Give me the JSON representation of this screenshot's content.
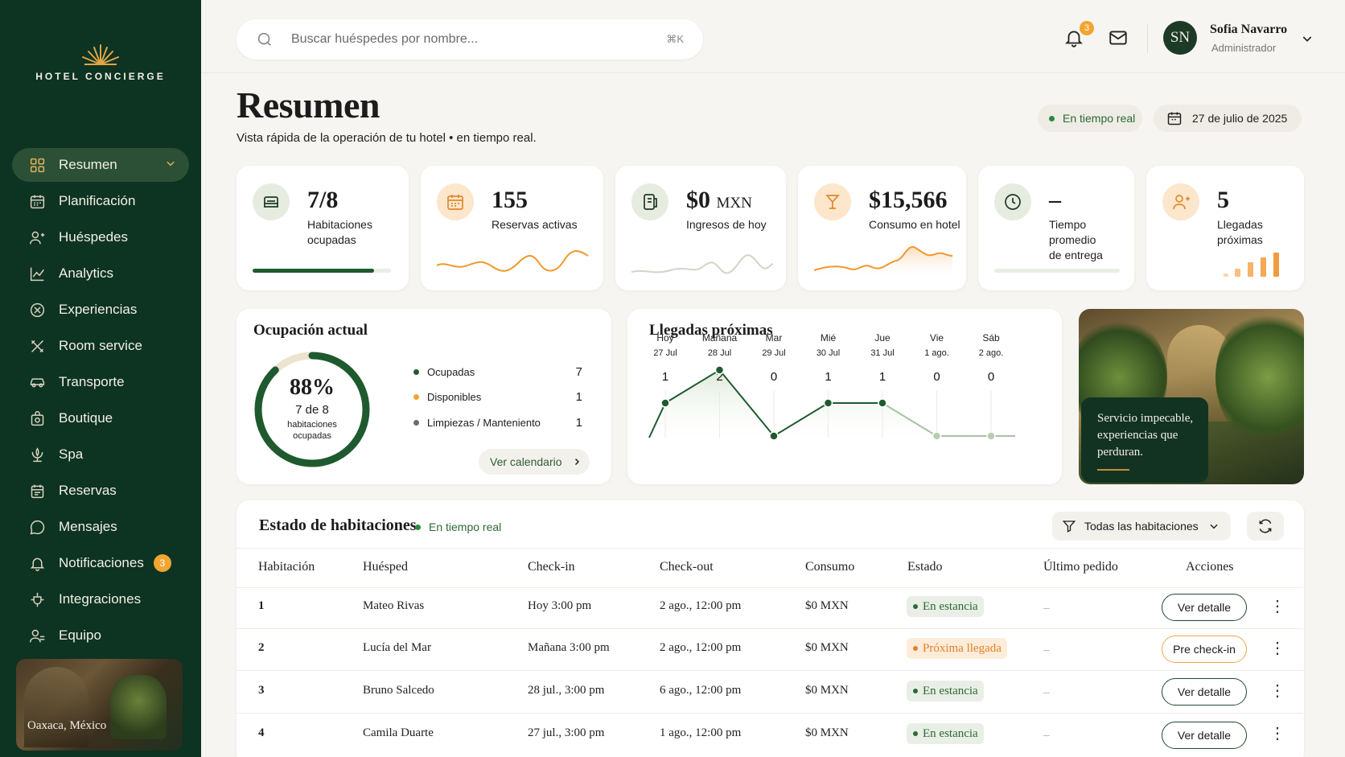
{
  "brand": {
    "name": "HOTEL CONCIERGE"
  },
  "sidebar": {
    "items": [
      {
        "label": "Resumen",
        "icon": "grid-icon",
        "active": true
      },
      {
        "label": "Planificación",
        "icon": "calendar-icon"
      },
      {
        "label": "Huéspedes",
        "icon": "users-icon"
      },
      {
        "label": "Analytics",
        "icon": "chart-line-icon"
      },
      {
        "label": "Experiencias",
        "icon": "compass-icon"
      },
      {
        "label": "Room service",
        "icon": "utensils-icon"
      },
      {
        "label": "Transporte",
        "icon": "car-icon"
      },
      {
        "label": "Boutique",
        "icon": "bag-icon"
      },
      {
        "label": "Spa",
        "icon": "lotus-icon"
      },
      {
        "label": "Reservas",
        "icon": "clipboard-icon"
      },
      {
        "label": "Mensajes",
        "icon": "chat-icon"
      },
      {
        "label": "Notificaciones",
        "icon": "bell-icon",
        "badge": "3"
      },
      {
        "label": "Integraciones",
        "icon": "plug-icon"
      },
      {
        "label": "Equipo",
        "icon": "team-icon"
      }
    ],
    "location": "Oaxaca, México"
  },
  "topbar": {
    "search_placeholder": "Buscar huéspedes por nombre...",
    "search_shortcut": "⌘K",
    "notif_count": "3",
    "user": {
      "initials": "SN",
      "name": "Sofia Navarro",
      "role": "Administrador"
    }
  },
  "header": {
    "title": "Resumen",
    "subtitle": "Vista rápida de la operación de tu hotel • en tiempo real.",
    "live_label": "En tiempo real",
    "date": "27 de julio de 2025"
  },
  "kpis": [
    {
      "value": "7/8",
      "unit": "",
      "label_line1": "Habitaciones",
      "label_line2": "ocupadas",
      "icon": "bed-icon",
      "progress": 0.875
    },
    {
      "value": "155",
      "unit": "",
      "label_line1": "Reservas activas",
      "label_line2": "",
      "icon": "calendar-icon"
    },
    {
      "value": "$0",
      "unit": "MXN",
      "label_line1": "Ingresos de hoy",
      "label_line2": "",
      "icon": "wallet-icon"
    },
    {
      "value": "$15,566",
      "unit": "",
      "label_line1": "Consumo en hotel",
      "label_line2": "",
      "icon": "cocktail-icon"
    },
    {
      "value": "–",
      "unit": "",
      "label_line1": "Tiempo promedio",
      "label_line2": "de entrega",
      "icon": "clock-icon",
      "progress": 0
    },
    {
      "value": "5",
      "unit": "",
      "label_line1": "Llegadas",
      "label_line2": "próximas",
      "icon": "user-plus-icon"
    }
  ],
  "occupancy": {
    "title": "Ocupación actual",
    "percent_label": "88%",
    "percent": 0.88,
    "detail": "7 de 8",
    "caption_line1": "habitaciones",
    "caption_line2": "ocupadas",
    "legend": [
      {
        "label": "Ocupadas",
        "value": "7",
        "color": "#1f5a2f"
      },
      {
        "label": "Disponibles",
        "value": "1",
        "color": "#f2a531"
      },
      {
        "label": "Limpiezas / Manteniento",
        "value": "1",
        "color": "#6b6b6b"
      }
    ],
    "button": "Ver calendario"
  },
  "arrivals": {
    "title": "Llegadas próximas",
    "days": [
      {
        "day": "Hoy",
        "date": "27 Jul",
        "count": 1
      },
      {
        "day": "Mañana",
        "date": "28 Jul",
        "count": 2
      },
      {
        "day": "Mar",
        "date": "29 Jul",
        "count": 0
      },
      {
        "day": "Mié",
        "date": "30 Jul",
        "count": 1
      },
      {
        "day": "Jue",
        "date": "31 Jul",
        "count": 1
      },
      {
        "day": "Vie",
        "date": "1 ago.",
        "count": 0
      },
      {
        "day": "Sáb",
        "date": "2 ago.",
        "count": 0
      }
    ]
  },
  "hero": {
    "caption_line1": "Servicio impecable,",
    "caption_line2": "experiencias que",
    "caption_line3": "perduran."
  },
  "rooms": {
    "title": "Estado de habitaciones",
    "live_label": "En tiempo real",
    "filter_label": "Todas las habitaciones",
    "columns": [
      "Habitación",
      "Huésped",
      "Check-in",
      "Check-out",
      "Consumo",
      "Estado",
      "Último pedido",
      "Acciones"
    ],
    "rows": [
      {
        "room": "1",
        "guest": "Mateo Rivas",
        "checkin": "Hoy 3:00 pm",
        "checkout": "2 ago., 12:00 pm",
        "consumption": "$0 MXN",
        "status": "En estancia",
        "last_order": "–",
        "action": "Ver detalle"
      },
      {
        "room": "2",
        "guest": "Lucía del Mar",
        "checkin": "Mañana 3:00 pm",
        "checkout": "2 ago., 12:00 pm",
        "consumption": "$0 MXN",
        "status": "Próxima llegada",
        "last_order": "–",
        "action": "Pre check-in"
      },
      {
        "room": "3",
        "guest": "Bruno Salcedo",
        "checkin": "28 jul., 3:00 pm",
        "checkout": "6 ago., 12:00 pm",
        "consumption": "$0 MXN",
        "status": "En estancia",
        "last_order": "–",
        "action": "Ver detalle"
      },
      {
        "room": "4",
        "guest": "Camila Duarte",
        "checkin": "27 jul., 3:00 pm",
        "checkout": "1 ago., 12:00 pm",
        "consumption": "$0 MXN",
        "status": "En estancia",
        "last_order": "–",
        "action": "Ver detalle"
      }
    ]
  },
  "colors": {
    "sidebar": "#0d3322",
    "accent_green": "#1f5a2f",
    "accent_orange": "#f2a531"
  }
}
